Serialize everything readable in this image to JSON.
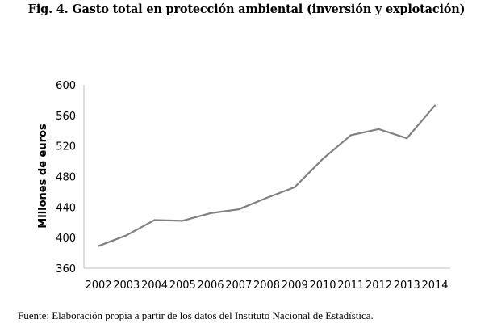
{
  "figure": {
    "title": "Fig. 4. Gasto total en protección ambiental (inversión y explotación)",
    "source": "Fuente: Elaboración propia a partir de los datos del Instituto Nacional de Estadística."
  },
  "chart_data": {
    "type": "line",
    "title": "Fig. 4. Gasto total en protección ambiental (inversión y explotación)",
    "xlabel": "",
    "ylabel": "Millones de euros",
    "categories": [
      "2002",
      "2003",
      "2004",
      "2005",
      "2006",
      "2007",
      "2008",
      "2009",
      "2010",
      "2011",
      "2012",
      "2013",
      "2014"
    ],
    "series": [
      {
        "name": "Gasto total",
        "values": [
          389,
          403,
          423,
          422,
          432,
          437,
          452,
          466,
          503,
          534,
          542,
          530,
          573
        ],
        "color": "#808080"
      }
    ],
    "ylim": [
      360,
      600
    ],
    "yticks": [
      360,
      400,
      440,
      480,
      520,
      560,
      600
    ],
    "ytick_labels": [
      "360",
      "400",
      "440",
      "480",
      "520",
      "560",
      "600"
    ],
    "grid": false,
    "legend": "none",
    "axis_color": "#bfbfbf"
  }
}
